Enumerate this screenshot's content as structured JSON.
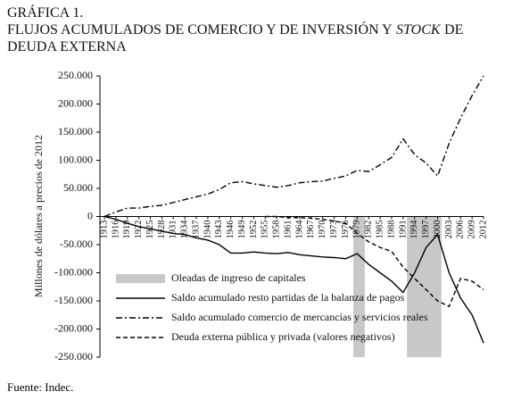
{
  "chart_data": {
    "type": "line",
    "label": "GRÁFICA 1.",
    "title": [
      "FLUJOS ACUMULADOS DE COMERCIO Y DE INVERSIÓN Y",
      "STOCK",
      "DE DEUDA EXTERNA"
    ],
    "y_label": "Millones de dólares a precios de 2012",
    "source": "Fuente: Indec.",
    "x": [
      1913,
      1916,
      1919,
      1922,
      1925,
      1928,
      1931,
      1934,
      1937,
      1940,
      1943,
      1946,
      1949,
      1952,
      1955,
      1958,
      1961,
      1964,
      1967,
      1970,
      1973,
      1976,
      1979,
      1982,
      1985,
      1988,
      1991,
      1994,
      1997,
      2000,
      2003,
      2006,
      2009,
      2012
    ],
    "xlim": [
      1913,
      2012
    ],
    "xticks": [
      1913,
      1916,
      1919,
      1922,
      1925,
      1928,
      1931,
      1934,
      1937,
      1940,
      1943,
      1946,
      1949,
      1952,
      1955,
      1958,
      1961,
      1964,
      1967,
      1970,
      1973,
      1976,
      1979,
      1982,
      1985,
      1988,
      1991,
      1994,
      1997,
      2000,
      2003,
      2006,
      2009,
      2012
    ],
    "ylim": [
      -250000,
      250000
    ],
    "yticks": [
      {
        "value": 250000,
        "label": "250.000"
      },
      {
        "value": 200000,
        "label": "200.000"
      },
      {
        "value": 150000,
        "label": "150.000"
      },
      {
        "value": 100000,
        "label": "100.000"
      },
      {
        "value": 50000,
        "label": "50.000"
      },
      0,
      {
        "value": -50000,
        "label": "-50.000"
      },
      {
        "value": -100000,
        "label": "-100.000"
      },
      {
        "value": -150000,
        "label": "-150.000"
      },
      {
        "value": -200000,
        "label": "-200.000"
      },
      {
        "value": -250000,
        "label": "-250.000"
      }
    ],
    "shaded_regions": {
      "name": "Oleadas de ingreso de capitales",
      "color": "#c8c8c8",
      "ranges": [
        [
          1978,
          1981
        ],
        [
          1992,
          2001
        ]
      ]
    },
    "series": [
      {
        "name": "Saldo acumulado resto partidas de la balanza de pagos",
        "color": "#000000",
        "style": "solid",
        "values": [
          0,
          -5000,
          -12000,
          -18000,
          -22000,
          -26000,
          -30000,
          -32000,
          -38000,
          -42000,
          -50000,
          -65000,
          -65000,
          -63000,
          -65000,
          -66000,
          -64000,
          -68000,
          -70000,
          -72000,
          -73000,
          -75000,
          -66000,
          -85000,
          -100000,
          -115000,
          -135000,
          -100000,
          -55000,
          -32000,
          -100000,
          -145000,
          -175000,
          -225000
        ]
      },
      {
        "name": "Saldo acumulado comercio de mercancías y servicios reales",
        "color": "#000000",
        "style": "dashdot",
        "values": [
          0,
          8000,
          15000,
          15000,
          18000,
          20000,
          25000,
          30000,
          35000,
          40000,
          48000,
          60000,
          62000,
          58000,
          55000,
          52000,
          55000,
          60000,
          62000,
          63000,
          68000,
          72000,
          82000,
          80000,
          92000,
          105000,
          138000,
          110000,
          95000,
          72000,
          130000,
          175000,
          215000,
          250000
        ]
      },
      {
        "name": "Deuda externa pública y privada (valores negativos)",
        "color": "#000000",
        "style": "dashed",
        "values": [
          null,
          null,
          null,
          null,
          null,
          null,
          null,
          null,
          null,
          null,
          null,
          null,
          null,
          null,
          0,
          0,
          -2000,
          -2000,
          -3000,
          -5000,
          -8000,
          -12000,
          -30000,
          -45000,
          -55000,
          -62000,
          -90000,
          -110000,
          -130000,
          -150000,
          -160000,
          -110000,
          -115000,
          -130000
        ]
      }
    ]
  }
}
